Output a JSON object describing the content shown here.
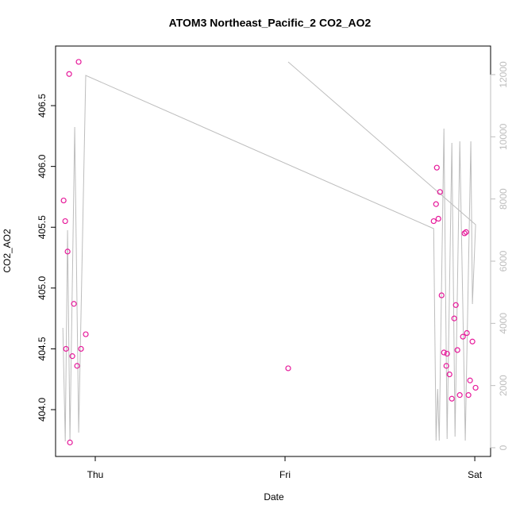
{
  "chart_data": {
    "type": "scatter",
    "title": "ATOM3 Northeast_Pacific_2 CO2_AO2",
    "xlabel": "Date",
    "ylabel": "CO2_AO2",
    "xlim": [
      -5.02,
      50.0
    ],
    "xticks": [
      {
        "value": 0,
        "label": "Thu"
      },
      {
        "value": 24,
        "label": "Fri"
      },
      {
        "value": 48,
        "label": "Sat"
      }
    ],
    "ylim": [
      403.615,
      406.99
    ],
    "yticks": [
      {
        "value": 404,
        "label": "404.0"
      },
      404.5,
      {
        "value": 405,
        "label": "405.0"
      },
      405.5,
      {
        "value": 406,
        "label": "406.0"
      },
      406.5
    ],
    "y2lim": [
      -281,
      12919
    ],
    "y2ticks": [
      0,
      2000,
      4000,
      6000,
      8000,
      10000,
      12000
    ],
    "y2_color": "#bdbdbd",
    "series": [
      {
        "kind": "points",
        "color": "#e6199a",
        "x": [
          -4.0,
          -3.8,
          -3.7,
          -3.5,
          -3.3,
          -3.2,
          -2.9,
          -2.7,
          -2.3,
          -2.1,
          -1.8,
          -1.2,
          24.4,
          42.8,
          43.1,
          43.2,
          43.4,
          43.6,
          43.8,
          44.1,
          44.4,
          44.5,
          44.8,
          45.1,
          45.4,
          45.6,
          45.8,
          46.1,
          46.5,
          46.7,
          46.9,
          47.0,
          47.2,
          47.4,
          47.7,
          48.1
        ],
        "values": [
          405.72,
          405.55,
          404.5,
          405.3,
          406.76,
          403.73,
          404.44,
          404.87,
          404.36,
          406.86,
          404.5,
          404.62,
          404.34,
          405.55,
          405.69,
          405.99,
          405.57,
          405.79,
          404.94,
          404.47,
          404.36,
          404.46,
          404.29,
          404.09,
          404.75,
          404.86,
          404.49,
          404.12,
          404.6,
          405.45,
          405.46,
          404.63,
          404.12,
          404.24,
          404.56,
          404.18
        ]
      },
      {
        "kind": "line",
        "axis": "y2",
        "color": "#bdbdbd",
        "x": [
          -4.1,
          -3.8,
          -3.5,
          -3.2,
          -2.6,
          -2.1,
          -1.2,
          42.8,
          43.1,
          43.3,
          43.5,
          44.1,
          44.5,
          45.1,
          45.5,
          46.1,
          46.8,
          47.5,
          47.7,
          48.1,
          24.4
        ],
        "values": [
          3855,
          204,
          6995,
          230,
          10314,
          485,
          11974,
          7047,
          230,
          1889,
          230,
          10263,
          281,
          9804,
          357,
          9855,
          230,
          9855,
          4621,
          7174,
          12408
        ]
      }
    ]
  }
}
